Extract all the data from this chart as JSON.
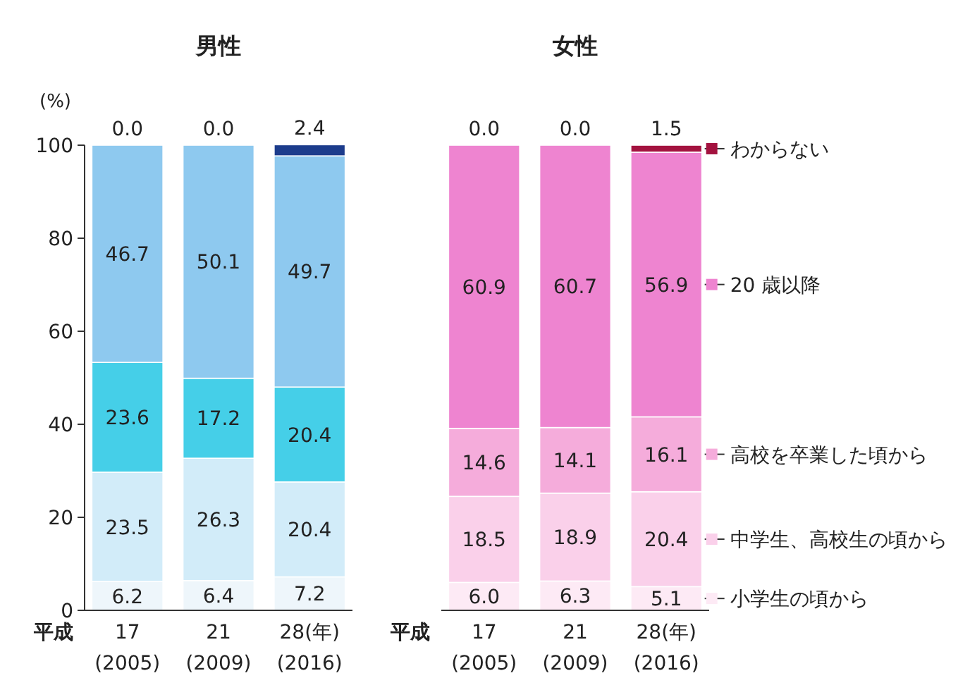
{
  "chart_data": [
    {
      "type": "bar",
      "title": "男性",
      "ylabel": "(%)",
      "stacked": true,
      "categories": [
        "17\n(2005)",
        "21\n(2009)",
        "28(年)\n(2016)"
      ],
      "annotations": [
        "平成"
      ],
      "ylim": [
        0,
        100
      ],
      "yticks": [
        0,
        20,
        40,
        60,
        80,
        100
      ],
      "series": [
        {
          "color": "#eef6fb",
          "values": [
            6.2,
            6.4,
            7.2
          ],
          "value_labels": [
            "6.2",
            "6.4",
            "7.2"
          ]
        },
        {
          "color": "#d2ecf9",
          "values": [
            23.5,
            26.3,
            20.4
          ],
          "value_labels": [
            "23.5",
            "26.3",
            "20.4"
          ]
        },
        {
          "color": "#45cfe8",
          "values": [
            23.6,
            17.2,
            20.4
          ],
          "value_labels": [
            "23.6",
            "17.2",
            "20.4"
          ]
        },
        {
          "color": "#8ec9ef",
          "values": [
            46.7,
            50.1,
            49.7
          ],
          "value_labels": [
            "46.7",
            "50.1",
            "49.7"
          ]
        },
        {
          "color": "#1c3c8c",
          "values": [
            0,
            0,
            2.4
          ],
          "value_labels": [
            "0.0",
            "0.0",
            "2.4"
          ]
        }
      ]
    },
    {
      "type": "bar",
      "title": "女性",
      "stacked": true,
      "tick_labels": "x",
      "legend": "right",
      "categories": [
        "17\n(2005)",
        "21\n(2009)",
        "28(年)\n(2016)"
      ],
      "annotations": [
        "平成"
      ],
      "ylim": [
        0,
        100
      ],
      "series": [
        {
          "name": "小学生の頃から",
          "color": "#fdeaf5",
          "values": [
            6,
            6.3,
            5.1
          ],
          "value_labels": [
            "6.0",
            "6.3",
            "5.1"
          ]
        },
        {
          "name": "中学生、高校生の頃から",
          "color": "#fad0ea",
          "values": [
            18.5,
            18.9,
            20.4
          ],
          "value_labels": [
            "18.5",
            "18.9",
            "20.4"
          ]
        },
        {
          "name": "高校を卒業した頃から",
          "color": "#f5acdb",
          "values": [
            14.6,
            14.1,
            16.1
          ],
          "value_labels": [
            "14.6",
            "14.1",
            "16.1"
          ]
        },
        {
          "name": "20 歳以降",
          "color": "#ee84d0",
          "values": [
            60.9,
            60.7,
            56.9
          ],
          "value_labels": [
            "60.9",
            "60.7",
            "56.9"
          ]
        },
        {
          "name": "わからない",
          "color": "#a3123f",
          "values": [
            0,
            0,
            1.5
          ],
          "value_labels": [
            "0.0",
            "0.0",
            "1.5"
          ]
        }
      ]
    }
  ]
}
